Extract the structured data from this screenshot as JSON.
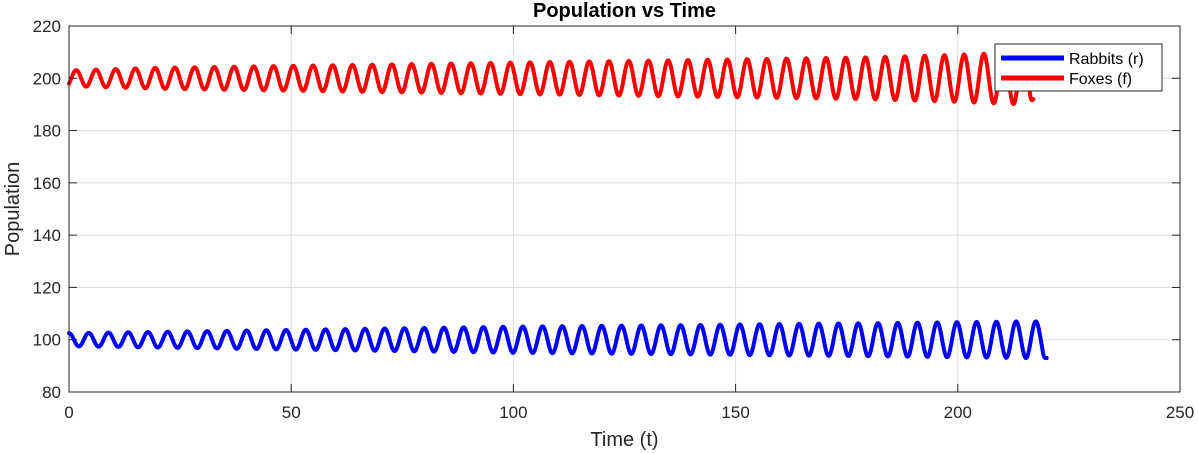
{
  "chart_data": {
    "type": "line",
    "title": "Population vs Time",
    "xlabel": "Time (t)",
    "ylabel": "Population",
    "xlim": [
      0,
      250
    ],
    "ylim": [
      80,
      220
    ],
    "xticks": [
      0,
      50,
      100,
      150,
      200,
      250
    ],
    "yticks": [
      80,
      100,
      120,
      140,
      160,
      180,
      200,
      220
    ],
    "grid": true,
    "legend_position": "top-right",
    "series": [
      {
        "name": "Rabbits (r)",
        "color": "#0000ff",
        "x": [
          0,
          20,
          40,
          60,
          80,
          100,
          120,
          140,
          160,
          180,
          200,
          215,
          220
        ],
        "center": [
          100,
          100,
          100,
          100,
          100,
          100,
          100,
          100,
          100,
          100,
          100,
          100,
          100
        ],
        "amplitude": [
          2.5,
          3.0,
          3.5,
          4.0,
          4.5,
          5.0,
          5.3,
          5.6,
          6.0,
          6.3,
          6.7,
          7.0,
          7.0
        ],
        "period": 4.44,
        "start_value": 102.5,
        "end_value": 93
      },
      {
        "name": "Foxes (f)",
        "color": "#ff0000",
        "x": [
          0,
          20,
          40,
          60,
          80,
          100,
          120,
          140,
          160,
          180,
          200,
          215,
          217
        ],
        "center": [
          200,
          200,
          200,
          200,
          200,
          200,
          200,
          200,
          200,
          200,
          200,
          200,
          200
        ],
        "amplitude": [
          3.0,
          4.0,
          4.5,
          5.0,
          5.5,
          6.0,
          6.5,
          7.0,
          7.5,
          8.0,
          9.0,
          10.0,
          10.0
        ],
        "period": 4.44,
        "start_value": 198,
        "end_value": 192
      }
    ]
  }
}
